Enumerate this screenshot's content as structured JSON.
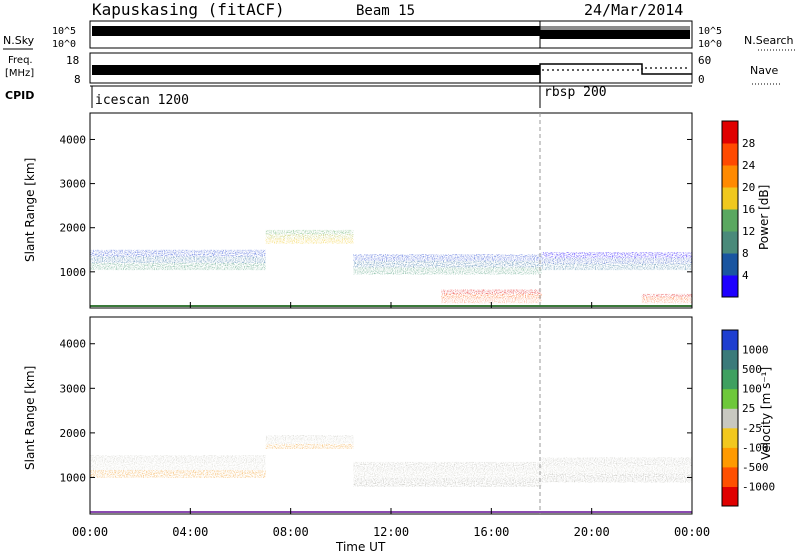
{
  "header": {
    "station": "Kapuskasing (fitACF)",
    "beam": "Beam 15",
    "date": "24/Mar/2014"
  },
  "strip_panels": {
    "nsky_label": "N.Sky",
    "nsky_ticks": [
      "10^5",
      "10^0"
    ],
    "nsearch_label": "N.Search",
    "nsearch_ticks": [
      "10^5",
      "10^0"
    ],
    "freq_label": "Freq.",
    "freq_unit": "[MHz]",
    "freq_ticks": [
      "18",
      "8"
    ],
    "nave_label": "Nave",
    "nave_ticks": [
      "60",
      "0"
    ],
    "cpid_label": "CPID",
    "cpid_segments": [
      "icescan 1200",
      "rbsp 200"
    ]
  },
  "axes": {
    "ylabel": "Slant Range [km]",
    "xlabel": "Time UT",
    "x_ticks": [
      "00:00",
      "04:00",
      "08:00",
      "12:00",
      "16:00",
      "20:00",
      "00:00"
    ],
    "y_ticks": [
      "1000",
      "2000",
      "3000",
      "4000"
    ]
  },
  "power_bar": {
    "label": "Power [dB]",
    "ticks": [
      "4",
      "8",
      "12",
      "16",
      "20",
      "24",
      "28"
    ],
    "colors": [
      "#1f00ff",
      "#1a55a0",
      "#4a8a7a",
      "#5aa860",
      "#f0c81e",
      "#ff8a00",
      "#ff4a00",
      "#e00000"
    ]
  },
  "velocity_bar": {
    "label": "Velocity [m s⁻¹]",
    "ticks": [
      "1000",
      "500",
      "100",
      "25",
      "-25",
      "-100",
      "-500",
      "-1000"
    ],
    "colors": [
      "#1f3fd0",
      "#3b7a7a",
      "#3fa060",
      "#6ec83a",
      "#c8c8c0",
      "#f2c81e",
      "#ff9a00",
      "#ff5000",
      "#e00000"
    ]
  },
  "chart_data": [
    {
      "type": "heatmap",
      "panel": "power",
      "x_range_hours": [
        0,
        24
      ],
      "y_range_km": [
        180,
        4600
      ],
      "regions": [
        {
          "t": [
            0,
            7
          ],
          "r": [
            1050,
            1500
          ],
          "level": "blue-green"
        },
        {
          "t": [
            7,
            10.5
          ],
          "r": [
            1650,
            1950
          ],
          "level": "green-yellow"
        },
        {
          "t": [
            10.5,
            18
          ],
          "r": [
            950,
            1400
          ],
          "level": "blue-green"
        },
        {
          "t": [
            14,
            18
          ],
          "r": [
            300,
            600
          ],
          "level": "red"
        },
        {
          "t": [
            18,
            24
          ],
          "r": [
            1050,
            1450
          ],
          "level": "blue"
        },
        {
          "t": [
            22,
            24
          ],
          "r": [
            300,
            500
          ],
          "level": "red"
        }
      ]
    },
    {
      "type": "heatmap",
      "panel": "velocity",
      "x_range_hours": [
        0,
        24
      ],
      "y_range_km": [
        180,
        4600
      ],
      "regions": [
        {
          "t": [
            0,
            7
          ],
          "r": [
            1000,
            1500
          ],
          "level": "grey-orange"
        },
        {
          "t": [
            7,
            10.5
          ],
          "r": [
            1650,
            1950
          ],
          "level": "grey-orange"
        },
        {
          "t": [
            10.5,
            18
          ],
          "r": [
            800,
            1350
          ],
          "level": "grey"
        },
        {
          "t": [
            18,
            24
          ],
          "r": [
            900,
            1450
          ],
          "level": "grey"
        }
      ]
    }
  ]
}
